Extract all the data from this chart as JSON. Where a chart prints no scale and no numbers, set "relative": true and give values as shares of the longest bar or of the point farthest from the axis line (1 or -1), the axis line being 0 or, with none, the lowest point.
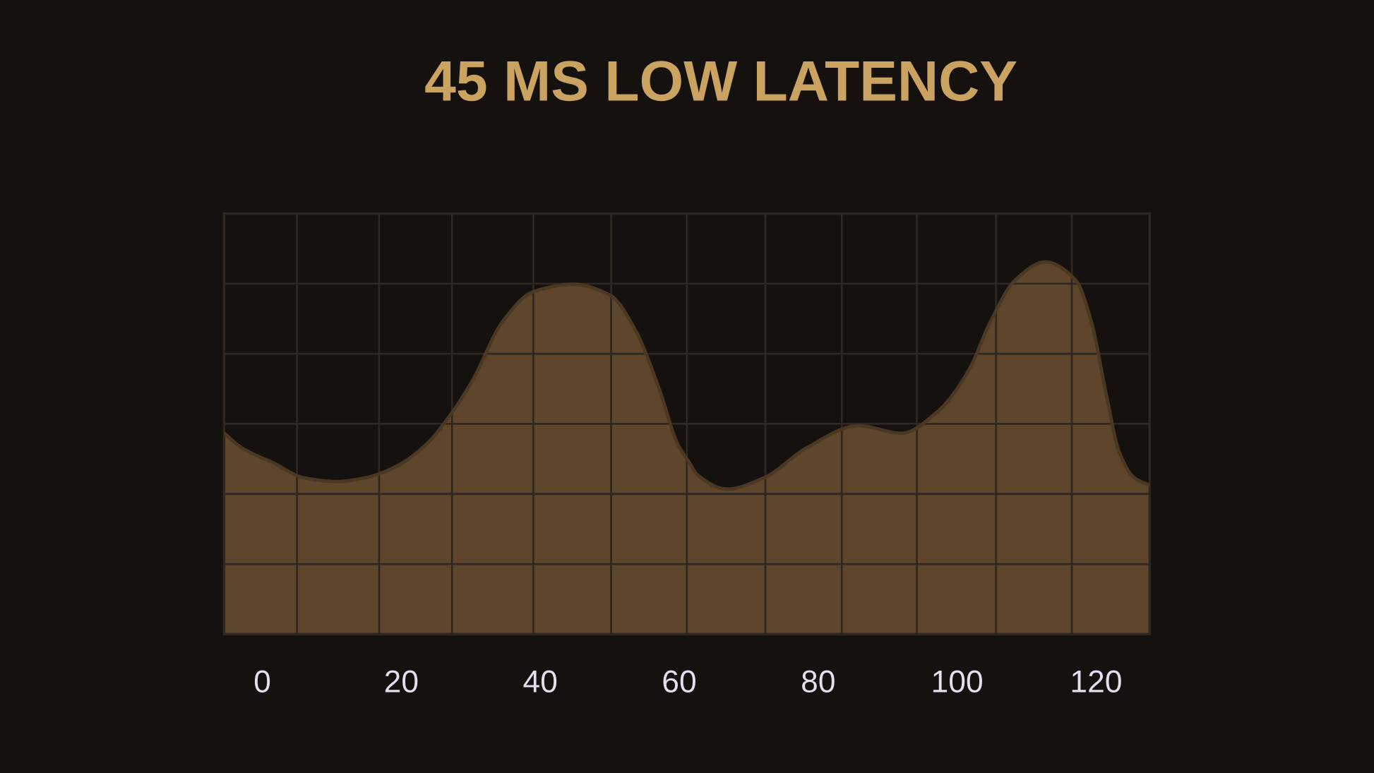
{
  "chart_data": {
    "type": "area",
    "title": "45 MS LOW LATENCY",
    "relative": true,
    "color": "#5e462c",
    "line_style": "solid",
    "grid": true,
    "x": [
      -5.5,
      -2.9,
      1.6,
      6.0,
      10.8,
      14.8,
      19.2,
      23.6,
      27.1,
      30.2,
      34.6,
      39.0,
      44.8,
      50.1,
      53.6,
      57.1,
      59.8,
      61.5,
      62.5,
      66.9,
      72.2,
      78.3,
      85.8,
      92.0,
      97.3,
      101.7,
      104.8,
      108.3,
      112.7,
      117.1,
      119.3,
      121.5,
      123.3,
      125.5,
      127.7
    ],
    "values": [
      0.54,
      0.5,
      0.46,
      0.42,
      0.41,
      0.42,
      0.45,
      0.51,
      0.59,
      0.68,
      0.84,
      0.92,
      0.94,
      0.91,
      0.82,
      0.66,
      0.51,
      0.46,
      0.43,
      0.39,
      0.42,
      0.5,
      0.56,
      0.54,
      0.6,
      0.71,
      0.84,
      0.95,
      1.0,
      0.95,
      0.84,
      0.64,
      0.49,
      0.42,
      0.4
    ],
    "xlim": [
      -5.5,
      127.7
    ],
    "xticks": [
      0,
      {
        "value": 5.0,
        "label": null
      },
      {
        "value": 16.8,
        "label": null
      },
      20,
      {
        "value": 27.3,
        "label": null
      },
      {
        "value": 39.0,
        "label": null
      },
      40,
      {
        "value": 50.2,
        "label": null
      },
      60,
      {
        "value": 61.1,
        "label": null
      },
      {
        "value": 72.4,
        "label": null
      },
      80,
      {
        "value": 83.4,
        "label": null
      },
      {
        "value": 94.2,
        "label": null
      },
      100,
      {
        "value": 105.6,
        "label": null
      },
      {
        "value": 116.5,
        "label": null
      },
      120
    ]
  }
}
